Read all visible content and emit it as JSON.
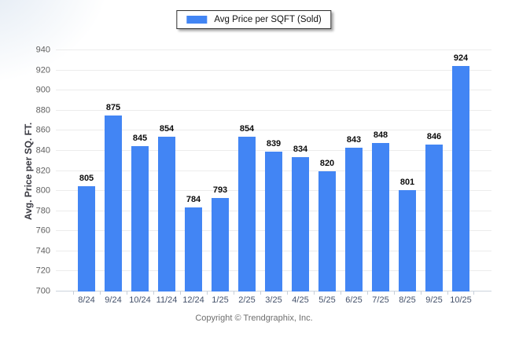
{
  "legend": {
    "label": "Avg Price per SQFT (Sold)",
    "swatch_color": "#4285F4"
  },
  "footer": {
    "copyright": "Copyright © Trendgraphix, Inc."
  },
  "chart_data": {
    "type": "bar",
    "categories": [
      "8/24",
      "9/24",
      "10/24",
      "11/24",
      "12/24",
      "1/25",
      "2/25",
      "3/25",
      "4/25",
      "5/25",
      "6/25",
      "7/25",
      "8/25",
      "9/25",
      "10/25"
    ],
    "values": [
      805,
      875,
      845,
      854,
      784,
      793,
      854,
      839,
      834,
      820,
      843,
      848,
      801,
      846,
      924
    ],
    "series_name": "Avg Price per SQFT (Sold)",
    "title": "",
    "xlabel": "",
    "ylabel": "Avg. Price per SQ. FT.",
    "ylim": [
      700,
      940
    ],
    "ytick_step": 20,
    "grid": true,
    "value_labels": true,
    "legend_position": "top-center",
    "bar_color": "#4285F4",
    "gridline_color": "#ececec",
    "baseline_color": "#ccd4dd"
  }
}
